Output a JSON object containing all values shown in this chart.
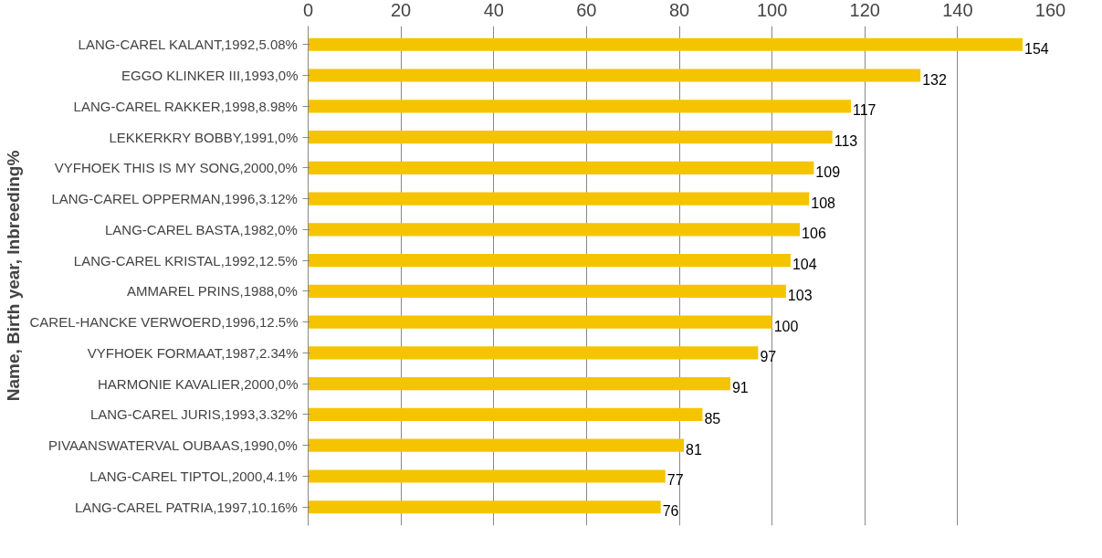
{
  "chart_data": {
    "type": "bar",
    "orientation": "horizontal",
    "ylabel": "Name, Birth year, Inbreeding%",
    "categories": [
      "LANG-CAREL KALANT,1992,5.08%",
      "EGGO KLINKER III,1993,0%",
      "LANG-CAREL RAKKER,1998,8.98%",
      "LEKKERKRY BOBBY,1991,0%",
      "VYFHOEK THIS IS MY SONG,2000,0%",
      "LANG-CAREL OPPERMAN,1996,3.12%",
      "LANG-CAREL BASTA,1982,0%",
      "LANG-CAREL KRISTAL,1992,12.5%",
      "AMMAREL PRINS,1988,0%",
      "CAREL-HANCKE VERWOERD,1996,12.5%",
      "VYFHOEK FORMAAT,1987,2.34%",
      "HARMONIE KAVALIER,2000,0%",
      "LANG-CAREL JURIS,1993,3.32%",
      "PIVAANSWATERVAL OUBAAS,1990,0%",
      "LANG-CAREL TIPTOL,2000,4.1%",
      "LANG-CAREL PATRIA,1997,10.16%"
    ],
    "values": [
      154,
      132,
      117,
      113,
      109,
      108,
      106,
      104,
      103,
      100,
      97,
      91,
      85,
      81,
      77,
      76
    ],
    "color": "#f5c400",
    "xlim": [
      0,
      160
    ],
    "xticks": [
      0,
      20,
      40,
      60,
      80,
      100,
      120,
      140,
      160
    ],
    "grid": "x",
    "data_labels": true
  }
}
